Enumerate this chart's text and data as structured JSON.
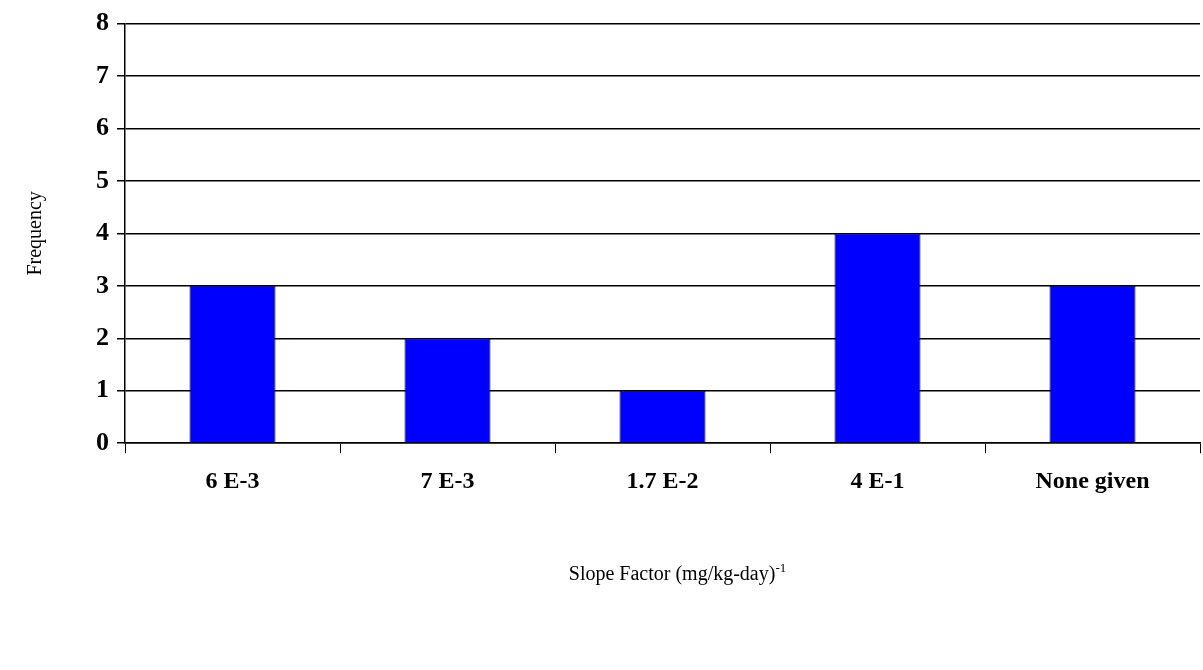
{
  "chart_data": {
    "type": "bar",
    "xlabel": "Slope Factor (mg/kg-day)$^{-1}$",
    "ylabel": "Frequency",
    "categories": [
      "6 E-3",
      "7 E-3",
      "1.7 E-2",
      "4 E-1",
      "None given"
    ],
    "values": [
      3,
      2,
      1,
      4,
      3
    ],
    "color": "#0000ff",
    "ylim": [
      0,
      8
    ],
    "yticks": [
      0,
      1,
      2,
      3,
      4,
      5,
      6,
      7,
      8
    ],
    "grid": "y",
    "legend": false
  }
}
